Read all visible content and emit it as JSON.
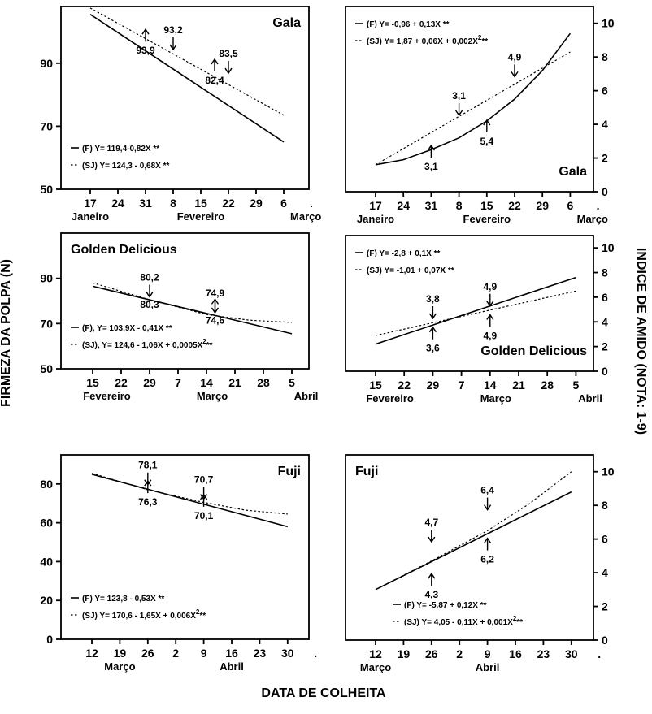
{
  "figure": {
    "y_left_label": "FIRMEZA DA POLPA (N)",
    "y_right_label": "INDICE DE AMIDO (NOTA: 1-9)",
    "x_label": "DATA DE COLHEITA"
  },
  "chart_data": [
    {
      "id": "gala-firmness",
      "type": "line",
      "cultivar": "Gala",
      "title": "Gala",
      "y_axis_side": "left",
      "x_ticks": [
        "17",
        "24",
        "31",
        "8",
        "15",
        "22",
        "29",
        "6",
        "."
      ],
      "months": [
        {
          "label": "Janeiro",
          "at_tick": 0
        },
        {
          "label": "Fevereiro",
          "at_tick": 4
        },
        {
          "label": "Março",
          "at_tick": 7.8
        }
      ],
      "y_ticks": [
        50,
        70,
        90
      ],
      "ylim": [
        50,
        108
      ],
      "series": [
        {
          "name": "F",
          "style": "solid",
          "x": [
            0,
            7
          ],
          "y": [
            105.5,
            65
          ]
        },
        {
          "name": "SJ",
          "style": "dotted",
          "x": [
            0,
            7
          ],
          "y": [
            107.5,
            73.5
          ]
        }
      ],
      "annotations": [
        {
          "text": "93,2",
          "x": 3,
          "y": 99.5,
          "direction": "down"
        },
        {
          "text": "93,9",
          "x": 2,
          "y": 93,
          "direction": "up"
        },
        {
          "text": "83,5",
          "x": 5,
          "y": 92,
          "direction": "down"
        },
        {
          "text": "82,4",
          "x": 4.5,
          "y": 83.5,
          "direction": "up"
        }
      ],
      "equations": [
        {
          "series": "F",
          "text": "(F) Y= 119,4-0,82X **"
        },
        {
          "series": "SJ",
          "text": "(SJ) Y= 124,3 - 0,68X **"
        }
      ],
      "legend_position": "bottom-left",
      "title_position": "top-right"
    },
    {
      "id": "gala-starch",
      "type": "line",
      "cultivar": "Gala",
      "title": "Gala",
      "y_axis_side": "right",
      "x_ticks": [
        "17",
        "24",
        "31",
        "8",
        "15",
        "22",
        "29",
        "6",
        "."
      ],
      "months": [
        {
          "label": "Janeiro",
          "at_tick": 0
        },
        {
          "label": "Fevereiro",
          "at_tick": 4
        },
        {
          "label": "Março",
          "at_tick": 7.8
        }
      ],
      "y_ticks": [
        0,
        2,
        4,
        6,
        8,
        10
      ],
      "ylim": [
        0,
        11
      ],
      "series": [
        {
          "name": "F",
          "style": "solid",
          "x": [
            0,
            1,
            2,
            3,
            4,
            5,
            6,
            7
          ],
          "y": [
            1.6,
            1.9,
            2.5,
            3.2,
            4.2,
            5.5,
            7.2,
            9.4
          ]
        },
        {
          "name": "SJ",
          "style": "dotted",
          "x": [
            0,
            7
          ],
          "y": [
            1.6,
            8.3
          ]
        }
      ],
      "annotations": [
        {
          "text": "3,1",
          "x": 3,
          "y": 5.5,
          "direction": "down"
        },
        {
          "text": "3,1",
          "x": 2,
          "y": 1.3,
          "direction": "up"
        },
        {
          "text": "4,9",
          "x": 5,
          "y": 7.8,
          "direction": "down"
        },
        {
          "text": "5,4",
          "x": 4,
          "y": 2.8,
          "direction": "up"
        }
      ],
      "equations": [
        {
          "series": "F",
          "text": "(F) Y= -0,96 + 0,13X **"
        },
        {
          "series": "SJ",
          "text": "(SJ) Y= 1,87 + 0,06X + 0,002X",
          "sup": "2",
          "suffix": "**"
        }
      ],
      "legend_position": "top-left",
      "title_position": "bottom-right"
    },
    {
      "id": "golden-firmness",
      "type": "line",
      "cultivar": "Golden Delicious",
      "title": "Golden Delicious",
      "y_axis_side": "left",
      "x_ticks": [
        "15",
        "22",
        "29",
        "7",
        "14",
        "21",
        "28",
        "5"
      ],
      "months": [
        {
          "label": "Fevereiro",
          "at_tick": 0.5
        },
        {
          "label": "Março",
          "at_tick": 4.2
        },
        {
          "label": "Abril",
          "at_tick": 7.5
        }
      ],
      "y_ticks": [
        50,
        70,
        90
      ],
      "ylim": [
        50,
        110
      ],
      "series": [
        {
          "name": "F",
          "style": "solid",
          "x": [
            0,
            7
          ],
          "y": [
            86.5,
            65.5
          ]
        },
        {
          "name": "SJ",
          "style": "dotted",
          "x": [
            0,
            2,
            4,
            5.5,
            7
          ],
          "y": [
            88,
            80.5,
            74,
            71.5,
            70.5
          ]
        }
      ],
      "annotations": [
        {
          "text": "80,2",
          "x": 2,
          "y": 89,
          "direction": "down"
        },
        {
          "text": "80,3",
          "x": 2,
          "y": 77,
          "direction": "none"
        },
        {
          "text": "74,9",
          "x": 4.3,
          "y": 82,
          "direction": "down"
        },
        {
          "text": "74,6",
          "x": 4.3,
          "y": 70,
          "direction": "up"
        }
      ],
      "equations": [
        {
          "series": "F",
          "text": "(F), Y= 103,9X - 0,41X **"
        },
        {
          "series": "SJ",
          "text": "(SJ), Y= 124,6 - 1,06X + 0,0005X",
          "sup": "2",
          "suffix": "**"
        }
      ],
      "legend_position": "bottom-left",
      "title_position": "top-left"
    },
    {
      "id": "golden-starch",
      "type": "line",
      "cultivar": "Golden Delicious",
      "title": "Golden Delicious",
      "y_axis_side": "right",
      "x_ticks": [
        "15",
        "22",
        "29",
        "7",
        "14",
        "21",
        "28",
        "5"
      ],
      "months": [
        {
          "label": "Fevereiro",
          "at_tick": 0.5
        },
        {
          "label": "Março",
          "at_tick": 4.2
        },
        {
          "label": "Abril",
          "at_tick": 7.5
        }
      ],
      "y_ticks": [
        0,
        2,
        4,
        6,
        8,
        10
      ],
      "ylim": [
        0,
        11
      ],
      "series": [
        {
          "name": "F",
          "style": "solid",
          "x": [
            0,
            7
          ],
          "y": [
            2.2,
            7.6
          ]
        },
        {
          "name": "SJ",
          "style": "dotted",
          "x": [
            0,
            7
          ],
          "y": [
            2.9,
            6.5
          ]
        }
      ],
      "annotations": [
        {
          "text": "3,8",
          "x": 2,
          "y": 5.6,
          "direction": "down"
        },
        {
          "text": "3,6",
          "x": 2,
          "y": 1.6,
          "direction": "up"
        },
        {
          "text": "4,9",
          "x": 4,
          "y": 6.6,
          "direction": "down"
        },
        {
          "text": "4,9",
          "x": 4,
          "y": 2.6,
          "direction": "up"
        }
      ],
      "equations": [
        {
          "series": "F",
          "text": "(F) Y= -2,8 + 0,1X **"
        },
        {
          "series": "SJ",
          "text": "(SJ) Y= -1,01 + 0,07X **"
        }
      ],
      "legend_position": "top-left",
      "title_position": "bottom-right"
    },
    {
      "id": "fuji-firmness",
      "type": "line",
      "cultivar": "Fuji",
      "title": "Fuji",
      "y_axis_side": "left",
      "x_ticks": [
        "12",
        "19",
        "26",
        "2",
        "9",
        "16",
        "23",
        "30",
        "."
      ],
      "months": [
        {
          "label": "Março",
          "at_tick": 1
        },
        {
          "label": "Abril",
          "at_tick": 5
        }
      ],
      "y_ticks": [
        0,
        20,
        40,
        60,
        80
      ],
      "ylim": [
        0,
        95
      ],
      "series": [
        {
          "name": "F",
          "style": "solid",
          "x": [
            0,
            7
          ],
          "y": [
            85,
            58
          ]
        },
        {
          "name": "SJ",
          "style": "dotted",
          "x": [
            0,
            2,
            4,
            5.5,
            7
          ],
          "y": [
            85.5,
            77,
            70.5,
            66.5,
            64.5
          ]
        }
      ],
      "annotations": [
        {
          "text": "78,1",
          "x": 2,
          "y": 88,
          "direction": "down"
        },
        {
          "text": "76,3",
          "x": 2,
          "y": 69,
          "direction": "up"
        },
        {
          "text": "70,7",
          "x": 4,
          "y": 80.5,
          "direction": "down"
        },
        {
          "text": "70,1",
          "x": 4,
          "y": 62,
          "direction": "up"
        }
      ],
      "equations": [
        {
          "series": "F",
          "text": "(F) Y= 123,8 - 0,53X **"
        },
        {
          "series": "SJ",
          "text": "(SJ) Y= 170,6 - 1,65X + 0,006X",
          "sup": "2",
          "suffix": "**"
        }
      ],
      "legend_position": "bottom-left",
      "title_position": "top-right"
    },
    {
      "id": "fuji-starch",
      "type": "line",
      "cultivar": "Fuji",
      "title": "Fuji",
      "y_axis_side": "right",
      "x_ticks": [
        "12",
        "19",
        "26",
        "2",
        "9",
        "16",
        "23",
        "30",
        "."
      ],
      "months": [
        {
          "label": "Março",
          "at_tick": 0
        },
        {
          "label": "Abril",
          "at_tick": 4
        }
      ],
      "y_ticks": [
        0,
        2,
        4,
        6,
        8,
        10
      ],
      "ylim": [
        0,
        11
      ],
      "series": [
        {
          "name": "F",
          "style": "solid",
          "x": [
            0,
            7
          ],
          "y": [
            3,
            8.8
          ]
        },
        {
          "name": "SJ",
          "style": "dotted",
          "x": [
            0,
            2,
            4,
            5.5,
            7
          ],
          "y": [
            3,
            4.7,
            6.5,
            8.1,
            10
          ]
        }
      ],
      "annotations": [
        {
          "text": "4,7",
          "x": 2,
          "y": 6.8,
          "direction": "down"
        },
        {
          "text": "4,3",
          "x": 2,
          "y": 2.5,
          "direction": "up"
        },
        {
          "text": "6,4",
          "x": 4,
          "y": 8.7,
          "direction": "down"
        },
        {
          "text": "6,2",
          "x": 4,
          "y": 4.6,
          "direction": "up"
        }
      ],
      "equations": [
        {
          "series": "F",
          "text": "(F) Y= -5,87 + 0,12X **"
        },
        {
          "series": "SJ",
          "text": "(SJ) Y= 4,05 - 0,11X + 0,001X",
          "sup": "2",
          "suffix": "**"
        }
      ],
      "legend_position": "bottom-right",
      "title_position": "top-left"
    }
  ]
}
